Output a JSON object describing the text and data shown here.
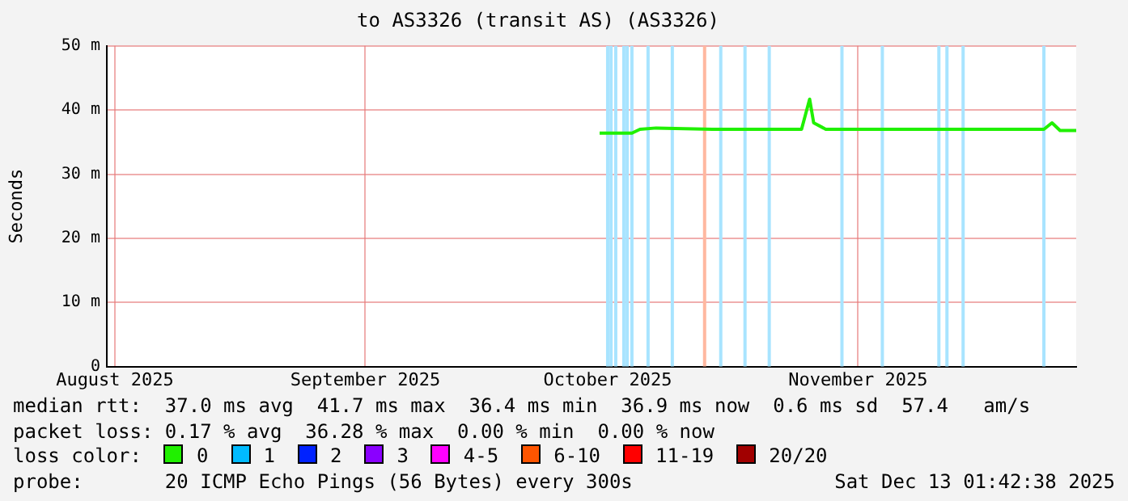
{
  "chart_data": {
    "type": "line",
    "title": "to AS3326 (transit AS) (AS3326)",
    "ylabel": "Seconds",
    "legend_title": "loss color:",
    "legend": "bottom",
    "grid": true,
    "xlim": [
      "2025-07-31",
      "2025-11-28"
    ],
    "xticks": [
      {
        "value": "2025-08-01",
        "label": "August 2025"
      },
      {
        "value": "2025-09-01",
        "label": "September 2025"
      },
      {
        "value": "2025-10-01",
        "label": "October 2025"
      },
      {
        "value": "2025-11-01",
        "label": "November 2025"
      }
    ],
    "ylim": [
      0,
      50
    ],
    "yticks": [
      {
        "value": 0,
        "label": "0"
      },
      {
        "value": 10,
        "label": "10 m"
      },
      {
        "value": 20,
        "label": "20 m"
      },
      {
        "value": 30,
        "label": "30 m"
      },
      {
        "value": 40,
        "label": "40 m"
      },
      {
        "value": 50,
        "label": "50 m"
      }
    ],
    "x": [
      "2025-09-30",
      "2025-10-04",
      "2025-10-05",
      "2025-10-07",
      "2025-10-14",
      "2025-10-25",
      "2025-10-26",
      "2025-10-26T12:00",
      "2025-10-28",
      "2025-11-24",
      "2025-11-25",
      "2025-11-26",
      "2025-11-28"
    ],
    "series": [
      {
        "name": "0",
        "color": "#20f000",
        "values": [
          36.4,
          36.4,
          37.0,
          37.2,
          37.0,
          37.0,
          41.7,
          38.0,
          37.0,
          37.0,
          38.0,
          36.8,
          36.8
        ]
      },
      {
        "name": "1",
        "color": "#00bbff",
        "values": [
          null,
          null,
          null,
          null,
          null,
          null,
          null,
          null,
          null,
          null,
          null,
          null,
          null
        ]
      },
      {
        "name": "2",
        "color": "#0022ff",
        "values": [
          null,
          null,
          null,
          null,
          null,
          null,
          null,
          null,
          null,
          null,
          null,
          null,
          null
        ]
      },
      {
        "name": "3",
        "color": "#8a00ff",
        "values": [
          null,
          null,
          null,
          null,
          null,
          null,
          null,
          null,
          null,
          null,
          null,
          null,
          null
        ]
      },
      {
        "name": "4-5",
        "color": "#ff00ff",
        "values": [
          null,
          null,
          null,
          null,
          null,
          null,
          null,
          null,
          null,
          null,
          null,
          null,
          null
        ]
      },
      {
        "name": "6-10",
        "color": "#ff5500",
        "values": [
          null,
          null,
          null,
          null,
          null,
          null,
          null,
          null,
          null,
          null,
          null,
          null,
          null
        ]
      },
      {
        "name": "11-19",
        "color": "#ff0000",
        "values": [
          null,
          null,
          null,
          null,
          null,
          null,
          null,
          null,
          null,
          null,
          null,
          null,
          null
        ]
      },
      {
        "name": "20/20",
        "color": "#a10000",
        "values": [
          null,
          null,
          null,
          null,
          null,
          null,
          null,
          null,
          null,
          null,
          null,
          null,
          null
        ]
      }
    ],
    "ref_lines": [
      {
        "axis": "x",
        "value": "2025-10-01",
        "color": "#a8e4ff"
      },
      {
        "axis": "x",
        "value": "2025-10-01T10:00",
        "color": "#a8e4ff"
      },
      {
        "axis": "x",
        "value": "2025-10-02",
        "color": "#a8e4ff"
      },
      {
        "axis": "x",
        "value": "2025-10-03",
        "color": "#a8e4ff"
      },
      {
        "axis": "x",
        "value": "2025-10-03T10:00",
        "color": "#a8e4ff"
      },
      {
        "axis": "x",
        "value": "2025-10-04",
        "color": "#a8e4ff"
      },
      {
        "axis": "x",
        "value": "2025-10-06",
        "color": "#a8e4ff"
      },
      {
        "axis": "x",
        "value": "2025-10-09",
        "color": "#a8e4ff"
      },
      {
        "axis": "x",
        "value": "2025-10-13",
        "color": "#ffb8a0"
      },
      {
        "axis": "x",
        "value": "2025-10-15",
        "color": "#a8e4ff"
      },
      {
        "axis": "x",
        "value": "2025-10-18",
        "color": "#a8e4ff"
      },
      {
        "axis": "x",
        "value": "2025-10-21",
        "color": "#a8e4ff"
      },
      {
        "axis": "x",
        "value": "2025-10-30",
        "color": "#a8e4ff"
      },
      {
        "axis": "x",
        "value": "2025-11-04",
        "color": "#a8e4ff"
      },
      {
        "axis": "x",
        "value": "2025-11-11",
        "color": "#a8e4ff"
      },
      {
        "axis": "x",
        "value": "2025-11-12",
        "color": "#a8e4ff"
      },
      {
        "axis": "x",
        "value": "2025-11-14",
        "color": "#a8e4ff"
      },
      {
        "axis": "x",
        "value": "2025-11-24",
        "color": "#a8e4ff"
      }
    ],
    "annotations": [
      "median rtt:  37.0 ms avg  41.7 ms max  36.4 ms min  36.9 ms now  0.6 ms sd  57.4   am/s",
      "packet loss: 0.17 % avg  36.28 % max  0.00 % min  0.00 % now",
      "probe:       20 ICMP Echo Pings (56 Bytes) every 300s",
      "Sat Dec 13 01:42:38 2025"
    ]
  }
}
